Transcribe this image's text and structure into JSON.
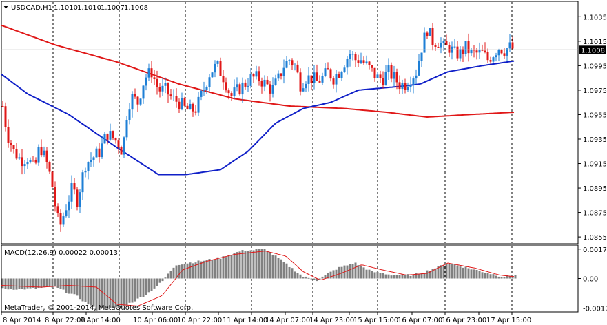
{
  "header": {
    "menu_icon": "triangle-down-icon",
    "symbol": "USDCAD,H1",
    "open": "1.1010",
    "high": "1.1010",
    "low": "1.1007",
    "close": "1.1008"
  },
  "macd_header": "MACD(12,26,9) 0.00022 0.00013",
  "copyright": "MetaTrader, © 2001-2014, MetaQuotes Software Corp.",
  "colors": {
    "background": "#ffffff",
    "bull": "#1e7fd6",
    "bear": "#e01818",
    "ma_fast": "#1020c8",
    "ma_slow": "#e01818",
    "macd_hist": "#808080",
    "macd_signal": "#e01818",
    "current_price_label_bg": "#000000"
  },
  "price_axis": {
    "labels": [
      "1.1035",
      "1.1015",
      "1.0995",
      "1.0975",
      "1.0955",
      "1.0935",
      "1.0915",
      "1.0895",
      "1.0875",
      "1.0855"
    ],
    "current": "1.1008",
    "range": [
      1.085,
      1.1047
    ]
  },
  "macd_axis": {
    "labels": [
      "0.00171",
      "0.00",
      "-0.00172"
    ],
    "range": [
      -0.0019,
      0.0019
    ]
  },
  "time_axis": {
    "labels": [
      "8 Apr 2014",
      "8 Apr 22:00",
      "9 Apr 14:00",
      "10 Apr 06:00",
      "10 Apr 22:00",
      "11 Apr 14:00",
      "14 Apr 07:00",
      "14 Apr 23:00",
      "15 Apr 15:00",
      "16 Apr 07:00",
      "16 Apr 23:00",
      "17 Apr 15:00"
    ]
  },
  "chart_data": {
    "type": "candlestick",
    "series": [
      {
        "name": "USDCAD,H1",
        "type": "candlestick"
      },
      {
        "type": "line"
      },
      {
        "type": "line"
      },
      {
        "name": "MACD(12,26,9)",
        "type": "bar"
      }
    ]
  }
}
